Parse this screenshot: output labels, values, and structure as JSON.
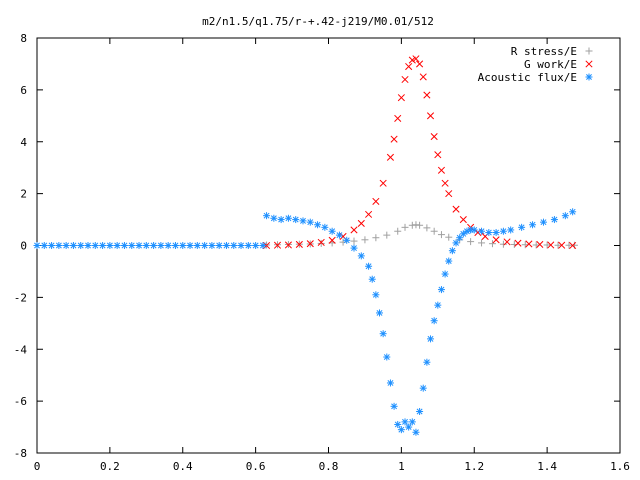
{
  "chart_data": {
    "type": "scatter",
    "title": "m2/n1.5/q1.75/r-+.42-j219/M0.01/512",
    "xlabel": "",
    "ylabel": "",
    "xlim": [
      0,
      1.6
    ],
    "ylim": [
      -8,
      8
    ],
    "xticks": [
      "0",
      "0.2",
      "0.4",
      "0.6",
      "0.8",
      "1",
      "1.2",
      "1.4",
      "1.6"
    ],
    "yticks": [
      "8",
      "6",
      "4",
      "2",
      "0",
      "-2",
      "-4",
      "-6",
      "-8"
    ],
    "grid": false,
    "legend_position": "top-right",
    "series": [
      {
        "name": "R stress/E",
        "marker": "plus",
        "color": "#a0a0a0",
        "x": [
          0.63,
          0.66,
          0.69,
          0.72,
          0.75,
          0.78,
          0.81,
          0.84,
          0.87,
          0.9,
          0.93,
          0.96,
          0.99,
          1.01,
          1.03,
          1.04,
          1.05,
          1.07,
          1.09,
          1.11,
          1.13,
          1.16,
          1.19,
          1.22,
          1.25,
          1.28,
          1.31,
          1.34,
          1.37,
          1.4,
          1.43,
          1.46,
          1.475
        ],
        "y": [
          0.02,
          0.03,
          0.04,
          0.05,
          0.06,
          0.08,
          0.1,
          0.13,
          0.17,
          0.22,
          0.3,
          0.4,
          0.55,
          0.7,
          0.78,
          0.8,
          0.78,
          0.68,
          0.55,
          0.42,
          0.32,
          0.22,
          0.15,
          0.1,
          0.07,
          0.05,
          0.04,
          0.03,
          0.02,
          0.02,
          0.01,
          0.01,
          0.01
        ]
      },
      {
        "name": "G work/E",
        "marker": "cross",
        "color": "#ff0000",
        "x": [
          0.63,
          0.66,
          0.69,
          0.72,
          0.75,
          0.78,
          0.81,
          0.84,
          0.87,
          0.89,
          0.91,
          0.93,
          0.95,
          0.97,
          0.98,
          0.99,
          1.0,
          1.01,
          1.02,
          1.03,
          1.04,
          1.05,
          1.06,
          1.07,
          1.08,
          1.09,
          1.1,
          1.11,
          1.12,
          1.13,
          1.15,
          1.17,
          1.19,
          1.21,
          1.23,
          1.26,
          1.29,
          1.32,
          1.35,
          1.38,
          1.41,
          1.44,
          1.47
        ],
        "y": [
          0.0,
          0.01,
          0.02,
          0.04,
          0.07,
          0.12,
          0.2,
          0.35,
          0.6,
          0.85,
          1.2,
          1.7,
          2.4,
          3.4,
          4.1,
          4.9,
          5.7,
          6.4,
          6.9,
          7.15,
          7.2,
          7.0,
          6.5,
          5.8,
          5.0,
          4.2,
          3.5,
          2.9,
          2.4,
          2.0,
          1.4,
          1.0,
          0.7,
          0.5,
          0.35,
          0.22,
          0.14,
          0.09,
          0.06,
          0.04,
          0.02,
          0.01,
          0.0
        ]
      },
      {
        "name": "Acoustic flux/E",
        "marker": "star",
        "color": "#1e90ff",
        "x": [
          0.0,
          0.02,
          0.04,
          0.06,
          0.08,
          0.1,
          0.12,
          0.14,
          0.16,
          0.18,
          0.2,
          0.22,
          0.24,
          0.26,
          0.28,
          0.3,
          0.32,
          0.34,
          0.36,
          0.38,
          0.4,
          0.42,
          0.44,
          0.46,
          0.48,
          0.5,
          0.52,
          0.54,
          0.56,
          0.58,
          0.6,
          0.62,
          0.63,
          0.65,
          0.67,
          0.69,
          0.71,
          0.73,
          0.75,
          0.77,
          0.79,
          0.81,
          0.83,
          0.85,
          0.87,
          0.89,
          0.91,
          0.92,
          0.93,
          0.94,
          0.95,
          0.96,
          0.97,
          0.98,
          0.99,
          1.0,
          1.01,
          1.02,
          1.03,
          1.04,
          1.05,
          1.06,
          1.07,
          1.08,
          1.09,
          1.1,
          1.11,
          1.12,
          1.13,
          1.14,
          1.15,
          1.16,
          1.17,
          1.18,
          1.19,
          1.2,
          1.22,
          1.24,
          1.26,
          1.28,
          1.3,
          1.33,
          1.36,
          1.39,
          1.42,
          1.45,
          1.47
        ],
        "y": [
          0,
          0,
          0,
          0,
          0,
          0,
          0,
          0,
          0,
          0,
          0,
          0,
          0,
          0,
          0,
          0,
          0,
          0,
          0,
          0,
          0,
          0,
          0,
          0,
          0,
          0,
          0,
          0,
          0,
          0,
          0,
          0,
          1.15,
          1.05,
          1.0,
          1.05,
          1.0,
          0.95,
          0.9,
          0.8,
          0.7,
          0.55,
          0.4,
          0.2,
          -0.1,
          -0.4,
          -0.8,
          -1.3,
          -1.9,
          -2.6,
          -3.4,
          -4.3,
          -5.3,
          -6.2,
          -6.9,
          -7.1,
          -6.8,
          -7.0,
          -6.8,
          -7.2,
          -6.4,
          -5.5,
          -4.5,
          -3.6,
          -2.9,
          -2.3,
          -1.7,
          -1.1,
          -0.6,
          -0.2,
          0.1,
          0.3,
          0.45,
          0.55,
          0.6,
          0.6,
          0.55,
          0.5,
          0.5,
          0.55,
          0.6,
          0.7,
          0.8,
          0.9,
          1.0,
          1.15,
          1.3
        ]
      }
    ]
  }
}
